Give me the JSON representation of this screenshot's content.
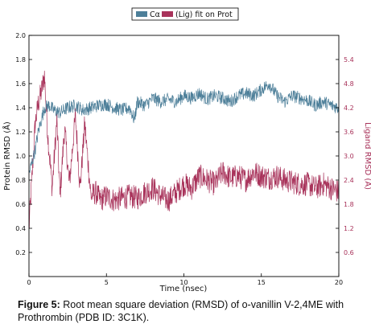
{
  "caption": {
    "label": "Figure 5:",
    "text": "Root mean square deviation (RMSD) of o-vanillin V-2,4ME with Prothrombin (PDB ID: 3C1K)."
  },
  "chart_data": {
    "type": "line",
    "xlabel": "Time (nsec)",
    "ylabel": "Protein RMSD (Å)",
    "y2label": "Ligand RMSD (Å)",
    "xlim": [
      0,
      20
    ],
    "ylim": [
      0,
      2.0
    ],
    "y2lim": [
      0,
      6.0
    ],
    "xticks": [
      "0",
      "5",
      "10",
      "15",
      "20"
    ],
    "yticks": [
      "0.2",
      "0.4",
      "0.6",
      "0.8",
      "1.0",
      "1.2",
      "1.4",
      "1.6",
      "1.8",
      "2.0"
    ],
    "y2ticks": [
      "0.6",
      "1.2",
      "1.8",
      "2.4",
      "3.0",
      "3.6",
      "4.2",
      "4.8",
      "5.4"
    ],
    "legend_position": "top-center",
    "grid": false,
    "series": [
      {
        "name": "Cα",
        "axis": "left",
        "color": "#4d7f99",
        "x": [
          0,
          0.2,
          0.4,
          0.6,
          0.8,
          1.0,
          1.3,
          1.6,
          2.0,
          2.5,
          3.0,
          3.5,
          4.0,
          4.5,
          5.0,
          5.5,
          6.0,
          6.5,
          6.8,
          7.0,
          7.5,
          8.0,
          8.5,
          9.0,
          9.5,
          10.0,
          10.5,
          11.0,
          11.5,
          12.0,
          12.5,
          13.0,
          13.5,
          14.0,
          14.5,
          15.0,
          15.5,
          16.0,
          16.5,
          17.0,
          17.5,
          18.0,
          18.5,
          19.0,
          19.5,
          20.0
        ],
        "values": [
          0.85,
          0.95,
          1.05,
          1.2,
          1.3,
          1.4,
          1.42,
          1.38,
          1.36,
          1.4,
          1.42,
          1.38,
          1.4,
          1.42,
          1.43,
          1.4,
          1.38,
          1.4,
          1.3,
          1.45,
          1.42,
          1.48,
          1.45,
          1.47,
          1.45,
          1.5,
          1.48,
          1.52,
          1.47,
          1.5,
          1.48,
          1.45,
          1.5,
          1.52,
          1.5,
          1.55,
          1.6,
          1.5,
          1.45,
          1.5,
          1.48,
          1.46,
          1.42,
          1.45,
          1.42,
          1.4
        ],
        "noise": 0.055
      },
      {
        "name": "(Lig) fit on Prot",
        "axis": "right",
        "color": "#a8325a",
        "x": [
          0,
          0.2,
          0.4,
          0.6,
          0.8,
          1.0,
          1.2,
          1.5,
          1.8,
          2.0,
          2.3,
          2.6,
          3.0,
          3.3,
          3.6,
          4.0,
          4.3,
          4.6,
          5.0,
          5.5,
          6.0,
          6.5,
          7.0,
          7.5,
          8.0,
          8.5,
          9.0,
          9.5,
          10.0,
          10.5,
          11.0,
          11.5,
          12.0,
          12.5,
          13.0,
          13.5,
          14.0,
          14.5,
          15.0,
          15.5,
          16.0,
          16.5,
          17.0,
          17.5,
          18.0,
          18.5,
          19.0,
          19.5,
          20.0
        ],
        "values": [
          1.2,
          2.5,
          3.8,
          4.3,
          4.6,
          5.0,
          3.6,
          2.2,
          3.9,
          2.0,
          3.7,
          2.3,
          4.0,
          2.2,
          3.8,
          2.0,
          2.1,
          1.9,
          2.0,
          1.9,
          1.95,
          2.0,
          1.95,
          2.1,
          2.2,
          2.0,
          1.9,
          2.1,
          2.3,
          2.2,
          2.5,
          2.4,
          2.3,
          2.6,
          2.45,
          2.5,
          2.4,
          2.6,
          2.5,
          2.45,
          2.5,
          2.4,
          2.35,
          2.3,
          2.3,
          2.2,
          2.3,
          2.2,
          2.1
        ],
        "noise": 0.3
      }
    ]
  }
}
